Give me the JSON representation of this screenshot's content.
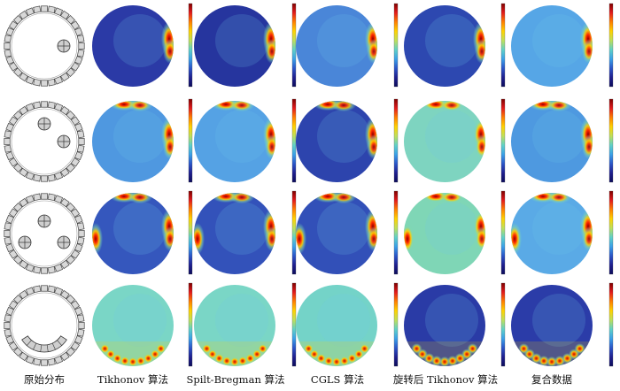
{
  "columns": [
    {
      "label": "原始分布",
      "type": "original"
    },
    {
      "label": "Tikhonov 算法",
      "type": "recon"
    },
    {
      "label": "Spilt-Bregman 算法",
      "type": "recon"
    },
    {
      "label": "CGLS 算法",
      "type": "recon"
    },
    {
      "label": "旋转后 Tikhonov 算法",
      "type": "recon"
    },
    {
      "label": "复合数据",
      "type": "recon"
    }
  ],
  "rows": [
    {
      "inclusions": "one-right",
      "panels": [
        {
          "bg": "#2b3aa6",
          "hot": "right-strong"
        },
        {
          "bg": "#26359e",
          "hot": "right-strong"
        },
        {
          "bg": "#4a86d8",
          "hot": "right-strong"
        },
        {
          "bg": "#2d48b0",
          "hot": "right-strong"
        },
        {
          "bg": "#56a6e6",
          "hot": "right-strong"
        }
      ]
    },
    {
      "inclusions": "top-and-right",
      "panels": [
        {
          "bg": "#4f98e0",
          "hot": "top-right"
        },
        {
          "bg": "#55a2e4",
          "hot": "top-right"
        },
        {
          "bg": "#2d44ad",
          "hot": "top-right"
        },
        {
          "bg": "#7ed4c0",
          "hot": "top-right"
        },
        {
          "bg": "#4e99e0",
          "hot": "top-right"
        }
      ]
    },
    {
      "inclusions": "three",
      "panels": [
        {
          "bg": "#3557bd",
          "hot": "top-left-right"
        },
        {
          "bg": "#3352ba",
          "hot": "top-left-right"
        },
        {
          "bg": "#3250b8",
          "hot": "top-left-right"
        },
        {
          "bg": "#7fd6b6",
          "hot": "top-left-right"
        },
        {
          "bg": "#5aaae6",
          "hot": "top-left-right"
        }
      ]
    },
    {
      "inclusions": "bottom-arc",
      "panels": [
        {
          "bg": "#7ad6c6",
          "hot": "bottom"
        },
        {
          "bg": "#7ad6c6",
          "hot": "bottom"
        },
        {
          "bg": "#74d3c8",
          "hot": "bottom"
        },
        {
          "bg": "#2a3ba6",
          "hot": "bottom"
        },
        {
          "bg": "#2b3ca8",
          "hot": "bottom"
        }
      ]
    }
  ],
  "colorbar": [
    "#7f0000",
    "#e31a1c",
    "#ff7f00",
    "#ffd200",
    "#bfe05a",
    "#5fd1c8",
    "#3aa0e8",
    "#2b55c8",
    "#1f1f8f",
    "#0b0b5a"
  ]
}
